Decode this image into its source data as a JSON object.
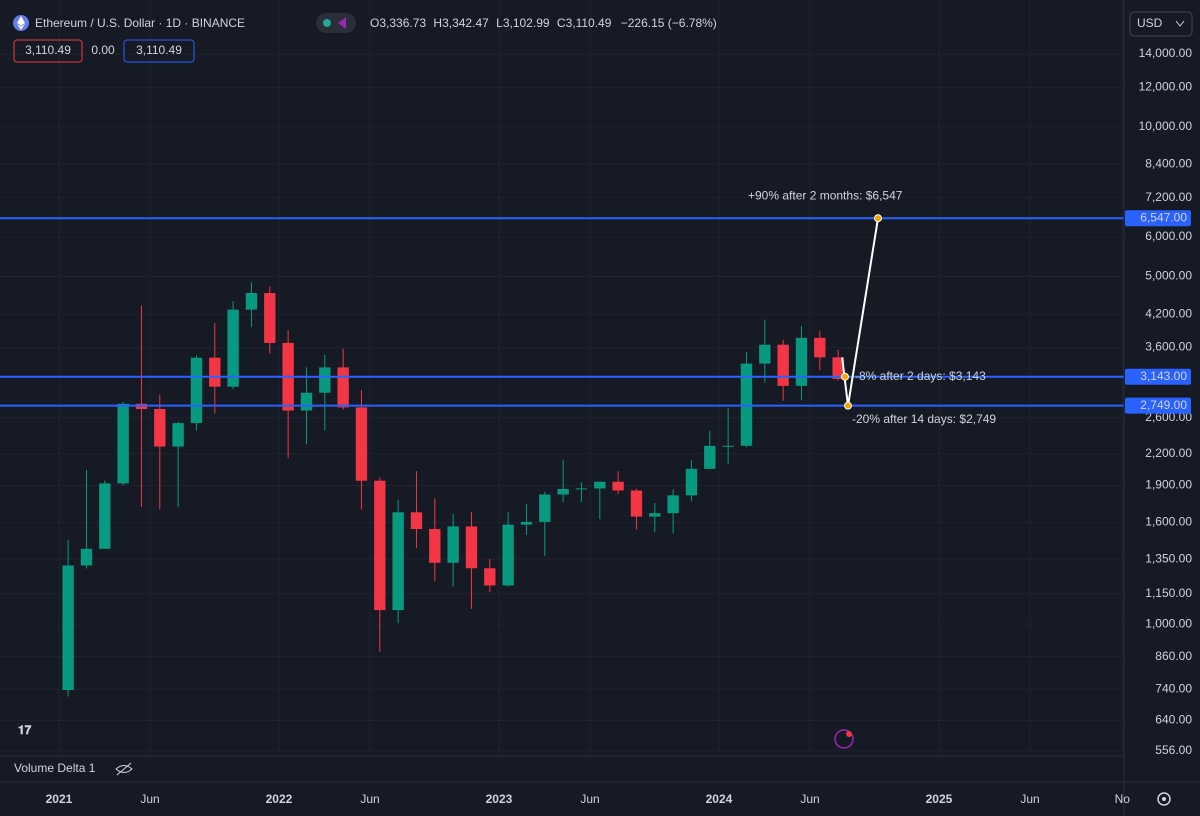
{
  "header": {
    "title": "Ethereum / U.S. Dollar · 1D · BINANCE",
    "ohlc": [
      {
        "label": "O",
        "value": "3,336.73"
      },
      {
        "label": "H",
        "value": "3,342.47"
      },
      {
        "label": "L",
        "value": "3,102.99"
      },
      {
        "label": "C",
        "value": "3,110.49"
      }
    ],
    "change": "−226.15 (−6.78%)",
    "bid": "3,110.49",
    "spread": "0.00",
    "ask": "3,110.49",
    "currency": "USD"
  },
  "indicator": "Volume Delta 1",
  "chart_data": {
    "type": "candlestick",
    "log_scale": true,
    "up_color": "#089981",
    "down_color": "#f23645",
    "x": [
      "2021-01",
      "2021-02",
      "2021-03",
      "2021-04",
      "2021-05",
      "2021-06",
      "2021-07",
      "2021-08",
      "2021-09",
      "2021-10",
      "2021-11",
      "2021-12",
      "2022-01",
      "2022-02",
      "2022-03",
      "2022-04",
      "2022-05",
      "2022-06",
      "2022-07",
      "2022-08",
      "2022-09",
      "2022-10",
      "2022-11",
      "2022-12",
      "2023-01",
      "2023-02",
      "2023-03",
      "2023-04",
      "2023-05",
      "2023-06",
      "2023-07",
      "2023-08",
      "2023-09",
      "2023-10",
      "2023-11",
      "2023-12",
      "2024-01",
      "2024-02",
      "2024-03",
      "2024-04",
      "2024-05",
      "2024-06",
      "2024-07"
    ],
    "open": [
      737,
      1312,
      1417,
      1918,
      2773,
      2706,
      2275,
      2536,
      3433,
      3001,
      4288,
      4631,
      3676,
      2688,
      2919,
      3282,
      2727,
      1942,
      1067,
      1678,
      1553,
      1328,
      1572,
      1295,
      1196,
      1585,
      1605,
      1822,
      1869,
      1874,
      1933,
      1856,
      1645,
      1671,
      1815,
      2052,
      2282,
      2283,
      3340,
      3645,
      3013,
      3763,
      3438
    ],
    "high": [
      1476,
      2041,
      1943,
      2798,
      4372,
      2891,
      2551,
      3472,
      4027,
      4460,
      4868,
      4778,
      3900,
      3284,
      3479,
      3580,
      2955,
      1970,
      1780,
      2030,
      1790,
      1665,
      1680,
      1352,
      1680,
      1742,
      1845,
      2141,
      1928,
      1935,
      2029,
      1871,
      1752,
      1865,
      2136,
      2445,
      2717,
      3523,
      4093,
      3730,
      3977,
      3887,
      3563
    ],
    "low": [
      715,
      1293,
      1440,
      1900,
      1719,
      1700,
      1719,
      2450,
      2651,
      2970,
      3960,
      3500,
      2159,
      2300,
      2450,
      2700,
      1700,
      880,
      1005,
      1422,
      1220,
      1190,
      1073,
      1160,
      1190,
      1512,
      1370,
      1760,
      1760,
      1626,
      1826,
      1550,
      1531,
      1521,
      1765,
      2050,
      2100,
      2267,
      3056,
      2810,
      2817,
      3240,
      3087
    ],
    "close": [
      1312,
      1417,
      1918,
      2773,
      2706,
      2275,
      2536,
      3433,
      3001,
      4288,
      4631,
      3676,
      2688,
      2919,
      3282,
      2727,
      1942,
      1067,
      1678,
      1553,
      1328,
      1572,
      1295,
      1196,
      1585,
      1605,
      1822,
      1869,
      1874,
      1933,
      1856,
      1645,
      1671,
      1815,
      2052,
      2282,
      2283,
      3340,
      3645,
      3013,
      3763,
      3438,
      3110.49
    ],
    "ylim": [
      543,
      17980
    ],
    "yticks": [
      {
        "value": 14000,
        "label": "14,000.00"
      },
      {
        "value": 12000,
        "label": "12,000.00"
      },
      {
        "value": 10000,
        "label": "10,000.00"
      },
      {
        "value": 8400,
        "label": "8,400.00"
      },
      {
        "value": 7200,
        "label": "7,200.00"
      },
      {
        "value": 6000,
        "label": "6,000.00"
      },
      {
        "value": 5000,
        "label": "5,000.00"
      },
      {
        "value": 4200,
        "label": "4,200.00"
      },
      {
        "value": 3600,
        "label": "3,600.00"
      },
      {
        "value": 2600,
        "label": "2,600.00"
      },
      {
        "value": 2200,
        "label": "2,200.00"
      },
      {
        "value": 1900,
        "label": "1,900.00"
      },
      {
        "value": 1600,
        "label": "1,600.00"
      },
      {
        "value": 1350,
        "label": "1,350.00"
      },
      {
        "value": 1150,
        "label": "1,150.00"
      },
      {
        "value": 1000,
        "label": "1,000.00"
      },
      {
        "value": 860,
        "label": "860.00"
      },
      {
        "value": 740,
        "label": "740.00"
      },
      {
        "value": 640,
        "label": "640.00"
      },
      {
        "value": 556,
        "label": "556.00"
      }
    ],
    "xlim": [
      2020.732,
      2025.841
    ],
    "xticks": [
      2021,
      {
        "value": 2021.414,
        "label": "Jun"
      },
      2022,
      {
        "value": 2022.414,
        "label": "Jun"
      },
      2023,
      {
        "value": 2023.414,
        "label": "Jun"
      },
      2024,
      {
        "value": 2024.414,
        "label": "Jun"
      },
      2025,
      {
        "value": 2025.414,
        "label": "Jun"
      },
      {
        "value": 2025.833,
        "label": "No"
      }
    ],
    "levels": [
      {
        "value": 6547,
        "label": "6,547.00",
        "annotation": "+90% after 2 months: $6,547"
      },
      {
        "value": 3143,
        "label": "3,143.00",
        "annotation": "-8% after 2 days: $3,143"
      },
      {
        "value": 2749,
        "label": "2,749.00",
        "annotation": "-20% after 14 days: $2,749"
      }
    ],
    "level_color": "#2962ff"
  }
}
